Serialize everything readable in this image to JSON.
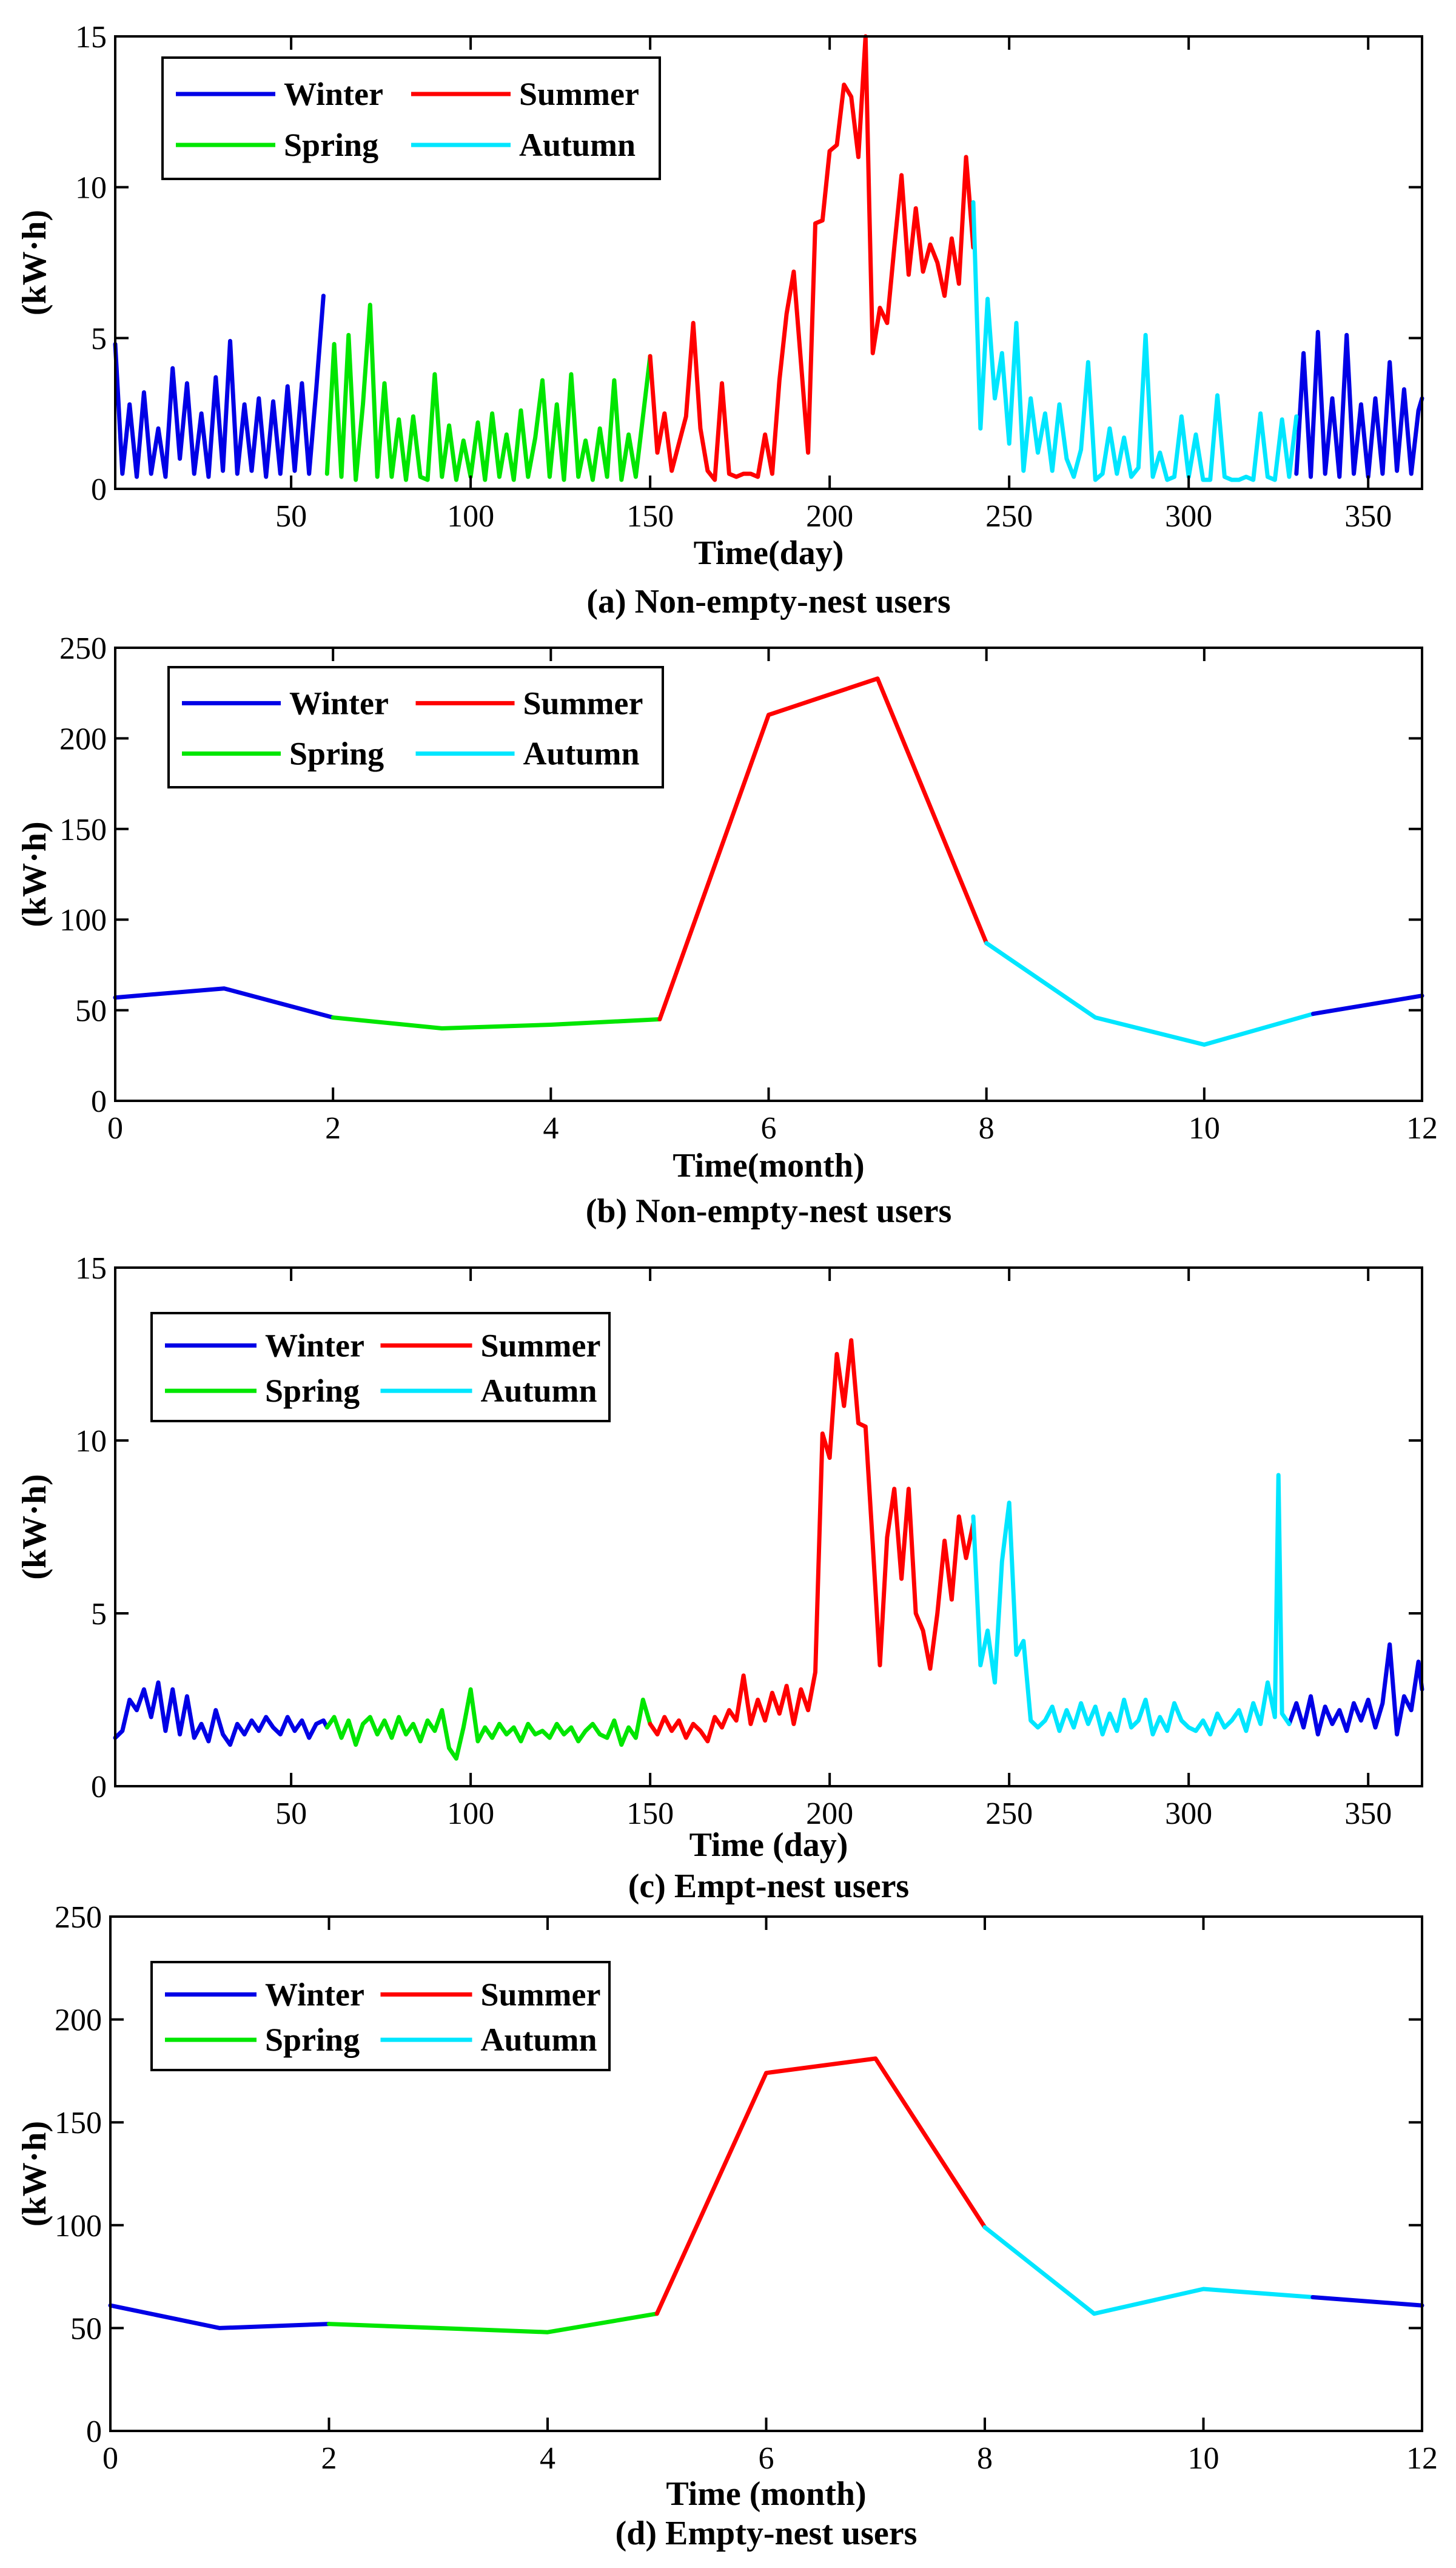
{
  "colors": {
    "winter": "#0000e6",
    "summer": "#ff0000",
    "spring": "#00e600",
    "autumn": "#00e6ff",
    "axis": "#000000"
  },
  "chart_data": [
    {
      "id": "a",
      "type": "line",
      "caption": "(a) Non-empty-nest users",
      "xlabel": "Time(day)",
      "ylabel": "(kW·h)",
      "xlim": [
        1,
        365
      ],
      "ylim": [
        0,
        15
      ],
      "xticks": [
        50,
        100,
        150,
        200,
        250,
        300,
        350
      ],
      "yticks": [
        0,
        5,
        10,
        15
      ],
      "legend": [
        "Winter",
        "Summer",
        "Spring",
        "Autumn"
      ],
      "legend_position": "top-left",
      "series": [
        {
          "name": "Winter",
          "color": "winter",
          "x": [
            1,
            3,
            5,
            7,
            9,
            11,
            13,
            15,
            17,
            19,
            21,
            23,
            25,
            27,
            29,
            31,
            33,
            35,
            37,
            39,
            41,
            43,
            45,
            47,
            49,
            51,
            53,
            55,
            57,
            59
          ],
          "y": [
            4.8,
            0.5,
            2.8,
            0.4,
            3.2,
            0.5,
            2.0,
            0.4,
            4.0,
            1.0,
            3.5,
            0.5,
            2.5,
            0.4,
            3.7,
            0.6,
            4.9,
            0.5,
            2.8,
            0.6,
            3.0,
            0.4,
            2.9,
            0.5,
            3.4,
            0.6,
            3.5,
            0.5,
            3.3,
            6.4
          ]
        },
        {
          "name": "Winter",
          "color": "winter",
          "x": [
            330,
            332,
            334,
            336,
            338,
            340,
            342,
            344,
            346,
            348,
            350,
            352,
            354,
            356,
            358,
            360,
            362,
            364,
            365
          ],
          "y": [
            0.5,
            4.5,
            0.4,
            5.2,
            0.5,
            3.0,
            0.4,
            5.1,
            0.5,
            2.8,
            0.4,
            3.0,
            0.5,
            4.2,
            0.6,
            3.3,
            0.5,
            2.6,
            3.0
          ]
        },
        {
          "name": "Spring",
          "color": "spring",
          "x": [
            60,
            62,
            64,
            66,
            68,
            70,
            72,
            74,
            76,
            78,
            80,
            82,
            84,
            86,
            88,
            90,
            92,
            94,
            96,
            98,
            100,
            102,
            104,
            106,
            108,
            110,
            112,
            114,
            116,
            118,
            120,
            122,
            124,
            126,
            128,
            130,
            132,
            134,
            136,
            138,
            140,
            142,
            144,
            146,
            148,
            150
          ],
          "y": [
            0.5,
            4.8,
            0.4,
            5.1,
            0.3,
            2.8,
            6.1,
            0.4,
            3.5,
            0.4,
            2.3,
            0.3,
            2.4,
            0.4,
            0.3,
            3.8,
            0.4,
            2.1,
            0.3,
            1.6,
            0.4,
            2.2,
            0.3,
            2.5,
            0.4,
            1.8,
            0.3,
            2.6,
            0.4,
            1.7,
            3.6,
            0.4,
            2.8,
            0.3,
            3.8,
            0.4,
            1.6,
            0.3,
            2.0,
            0.4,
            3.6,
            0.3,
            1.8,
            0.4,
            2.4,
            4.4
          ]
        },
        {
          "name": "Summer",
          "color": "summer",
          "x": [
            150,
            152,
            154,
            156,
            158,
            160,
            162,
            164,
            166,
            168,
            170,
            172,
            174,
            176,
            178,
            180,
            182,
            184,
            186,
            188,
            190,
            192,
            194,
            196,
            198,
            200,
            202,
            204,
            206,
            208,
            210,
            211,
            212,
            214,
            216,
            218,
            220,
            222,
            224,
            226,
            228,
            230,
            232,
            234,
            236,
            238,
            240
          ],
          "y": [
            4.4,
            1.2,
            2.5,
            0.6,
            1.5,
            2.4,
            5.5,
            2.0,
            0.6,
            0.3,
            3.5,
            0.5,
            0.4,
            0.5,
            0.5,
            0.4,
            1.8,
            0.5,
            3.6,
            5.8,
            7.2,
            4.2,
            1.2,
            8.8,
            8.9,
            11.2,
            11.4,
            13.4,
            13.0,
            11.0,
            15.0,
            9.5,
            4.5,
            6.0,
            5.5,
            8.0,
            10.4,
            7.1,
            9.3,
            7.2,
            8.1,
            7.5,
            6.4,
            8.3,
            6.8,
            11.0,
            8.0
          ]
        },
        {
          "name": "Autumn",
          "color": "autumn",
          "x": [
            240,
            242,
            244,
            246,
            248,
            250,
            252,
            254,
            256,
            258,
            260,
            262,
            264,
            266,
            268,
            270,
            272,
            274,
            276,
            278,
            280,
            282,
            284,
            286,
            288,
            290,
            292,
            294,
            296,
            298,
            300,
            302,
            304,
            306,
            308,
            310,
            312,
            314,
            316,
            318,
            320,
            322,
            324,
            326,
            328,
            330
          ],
          "y": [
            9.5,
            2.0,
            6.3,
            3.0,
            4.5,
            1.5,
            5.5,
            0.6,
            3.0,
            1.2,
            2.5,
            0.6,
            2.8,
            1.0,
            0.4,
            1.3,
            4.2,
            0.3,
            0.5,
            2.0,
            0.5,
            1.7,
            0.4,
            0.7,
            5.1,
            0.4,
            1.2,
            0.3,
            0.4,
            2.4,
            0.4,
            1.8,
            0.3,
            0.3,
            3.1,
            0.4,
            0.3,
            0.3,
            0.4,
            0.3,
            2.5,
            0.4,
            0.3,
            2.3,
            0.4,
            2.4
          ]
        }
      ]
    },
    {
      "id": "b",
      "type": "line",
      "caption": "(b) Non-empty-nest users",
      "xlabel": "Time(month)",
      "ylabel": "(kW·h)",
      "xlim": [
        0,
        12
      ],
      "ylim": [
        0,
        250
      ],
      "xticks": [
        0,
        2,
        4,
        6,
        8,
        10,
        12
      ],
      "yticks": [
        0,
        50,
        100,
        150,
        200,
        250
      ],
      "legend": [
        "Winter",
        "Summer",
        "Spring",
        "Autumn"
      ],
      "legend_position": "top-left",
      "series": [
        {
          "name": "Winter",
          "color": "winter",
          "x": [
            0,
            1,
            2
          ],
          "y": [
            57,
            62,
            46
          ]
        },
        {
          "name": "Spring",
          "color": "spring",
          "x": [
            2,
            3,
            4,
            5
          ],
          "y": [
            46,
            40,
            42,
            45
          ]
        },
        {
          "name": "Summer",
          "color": "summer",
          "x": [
            5,
            6,
            7,
            8
          ],
          "y": [
            45,
            213,
            233,
            87
          ]
        },
        {
          "name": "Autumn",
          "color": "autumn",
          "x": [
            8,
            9,
            10,
            11
          ],
          "y": [
            87,
            46,
            31,
            48
          ]
        },
        {
          "name": "Winter",
          "color": "winter",
          "x": [
            11,
            12
          ],
          "y": [
            48,
            58
          ]
        }
      ]
    },
    {
      "id": "c",
      "type": "line",
      "caption": "(c) Empt-nest users",
      "xlabel": "Time (day)",
      "ylabel": "(kW·h)",
      "xlim": [
        1,
        365
      ],
      "ylim": [
        0,
        15
      ],
      "xticks": [
        50,
        100,
        150,
        200,
        250,
        300,
        350
      ],
      "yticks": [
        0,
        5,
        10,
        15
      ],
      "legend": [
        "Winter",
        "Summer",
        "Spring",
        "Autumn"
      ],
      "legend_position": "top-left",
      "series": [
        {
          "name": "Winter",
          "color": "winter",
          "x": [
            1,
            3,
            5,
            7,
            9,
            11,
            13,
            15,
            17,
            19,
            21,
            23,
            25,
            27,
            29,
            31,
            33,
            35,
            37,
            39,
            41,
            43,
            45,
            47,
            49,
            51,
            53,
            55,
            57,
            59,
            60
          ],
          "y": [
            1.4,
            1.6,
            2.5,
            2.2,
            2.8,
            2.0,
            3.0,
            1.6,
            2.8,
            1.5,
            2.6,
            1.4,
            1.8,
            1.3,
            2.2,
            1.5,
            1.2,
            1.8,
            1.5,
            1.9,
            1.6,
            2.0,
            1.7,
            1.5,
            2.0,
            1.6,
            1.9,
            1.4,
            1.8,
            1.9,
            1.7
          ]
        },
        {
          "name": "Winter",
          "color": "winter",
          "x": [
            328,
            330,
            332,
            334,
            336,
            338,
            340,
            342,
            344,
            346,
            348,
            350,
            352,
            354,
            356,
            358,
            360,
            362,
            364,
            365
          ],
          "y": [
            1.8,
            2.4,
            1.7,
            2.6,
            1.5,
            2.3,
            1.8,
            2.2,
            1.6,
            2.4,
            1.9,
            2.5,
            1.7,
            2.4,
            4.1,
            1.5,
            2.6,
            2.2,
            3.6,
            2.8
          ]
        },
        {
          "name": "Spring",
          "color": "spring",
          "x": [
            60,
            62,
            64,
            66,
            68,
            70,
            72,
            74,
            76,
            78,
            80,
            82,
            84,
            86,
            88,
            90,
            92,
            94,
            96,
            98,
            100,
            102,
            104,
            106,
            108,
            110,
            112,
            114,
            116,
            118,
            120,
            122,
            124,
            126,
            128,
            130,
            132,
            134,
            136,
            138,
            140,
            142,
            144,
            146,
            148,
            150
          ],
          "y": [
            1.7,
            2.0,
            1.4,
            1.9,
            1.2,
            1.8,
            2.0,
            1.5,
            1.9,
            1.4,
            2.0,
            1.5,
            1.8,
            1.3,
            1.9,
            1.6,
            2.2,
            1.1,
            0.8,
            1.7,
            2.8,
            1.3,
            1.7,
            1.4,
            1.8,
            1.5,
            1.7,
            1.3,
            1.8,
            1.5,
            1.6,
            1.4,
            1.8,
            1.5,
            1.7,
            1.3,
            1.6,
            1.8,
            1.5,
            1.4,
            1.9,
            1.2,
            1.7,
            1.4,
            2.5,
            1.8
          ]
        },
        {
          "name": "Summer",
          "color": "summer",
          "x": [
            150,
            152,
            154,
            156,
            158,
            160,
            162,
            164,
            166,
            168,
            170,
            172,
            174,
            176,
            178,
            180,
            182,
            184,
            186,
            188,
            190,
            192,
            194,
            196,
            198,
            200,
            202,
            204,
            206,
            208,
            210,
            212,
            214,
            216,
            218,
            220,
            222,
            224,
            226,
            228,
            230,
            232,
            234,
            236,
            238,
            240
          ],
          "y": [
            1.8,
            1.5,
            2.0,
            1.6,
            1.9,
            1.4,
            1.8,
            1.6,
            1.3,
            2.0,
            1.7,
            2.2,
            1.9,
            3.2,
            1.8,
            2.5,
            1.9,
            2.7,
            2.1,
            2.9,
            1.8,
            2.8,
            2.2,
            3.3,
            10.2,
            9.5,
            12.5,
            11.0,
            12.9,
            10.5,
            10.4,
            7.0,
            3.5,
            7.2,
            8.6,
            6.0,
            8.6,
            5.0,
            4.5,
            3.4,
            5.0,
            7.1,
            5.4,
            7.8,
            6.6,
            7.6
          ]
        },
        {
          "name": "Autumn",
          "color": "autumn",
          "x": [
            240,
            242,
            244,
            246,
            248,
            250,
            252,
            254,
            256,
            258,
            260,
            262,
            264,
            266,
            268,
            270,
            272,
            274,
            276,
            278,
            280,
            282,
            284,
            286,
            288,
            290,
            292,
            294,
            296,
            298,
            300,
            302,
            304,
            306,
            308,
            310,
            312,
            314,
            316,
            318,
            320,
            322,
            324,
            325,
            326,
            328
          ],
          "y": [
            7.8,
            3.5,
            4.5,
            3.0,
            6.5,
            8.2,
            3.8,
            4.2,
            1.9,
            1.7,
            1.9,
            2.3,
            1.6,
            2.2,
            1.7,
            2.4,
            1.8,
            2.3,
            1.5,
            2.1,
            1.6,
            2.5,
            1.7,
            1.9,
            2.5,
            1.5,
            2.0,
            1.6,
            2.4,
            1.9,
            1.7,
            1.6,
            1.9,
            1.5,
            2.1,
            1.7,
            1.9,
            2.2,
            1.6,
            2.4,
            1.8,
            3.0,
            2.0,
            9.0,
            2.1,
            1.8
          ]
        }
      ]
    },
    {
      "id": "d",
      "type": "line",
      "caption": "(d) Empty-nest users",
      "xlabel": "Time (month)",
      "ylabel": "(kW·h)",
      "xlim": [
        0,
        12
      ],
      "ylim": [
        0,
        250
      ],
      "xticks": [
        0,
        2,
        4,
        6,
        8,
        10,
        12
      ],
      "yticks": [
        0,
        50,
        100,
        150,
        200,
        250
      ],
      "legend": [
        "Winter",
        "Summer",
        "Spring",
        "Autumn"
      ],
      "legend_position": "top-left",
      "series": [
        {
          "name": "Winter",
          "color": "winter",
          "x": [
            0,
            1,
            2
          ],
          "y": [
            61,
            50,
            52
          ]
        },
        {
          "name": "Spring",
          "color": "spring",
          "x": [
            2,
            3,
            4,
            5
          ],
          "y": [
            52,
            50,
            48,
            57
          ]
        },
        {
          "name": "Summer",
          "color": "summer",
          "x": [
            5,
            6,
            7,
            8
          ],
          "y": [
            57,
            174,
            181,
            99
          ]
        },
        {
          "name": "Autumn",
          "color": "autumn",
          "x": [
            8,
            9,
            10,
            11
          ],
          "y": [
            99,
            57,
            69,
            65
          ]
        },
        {
          "name": "Winter",
          "color": "winter",
          "x": [
            11,
            12
          ],
          "y": [
            65,
            61
          ]
        }
      ]
    }
  ]
}
